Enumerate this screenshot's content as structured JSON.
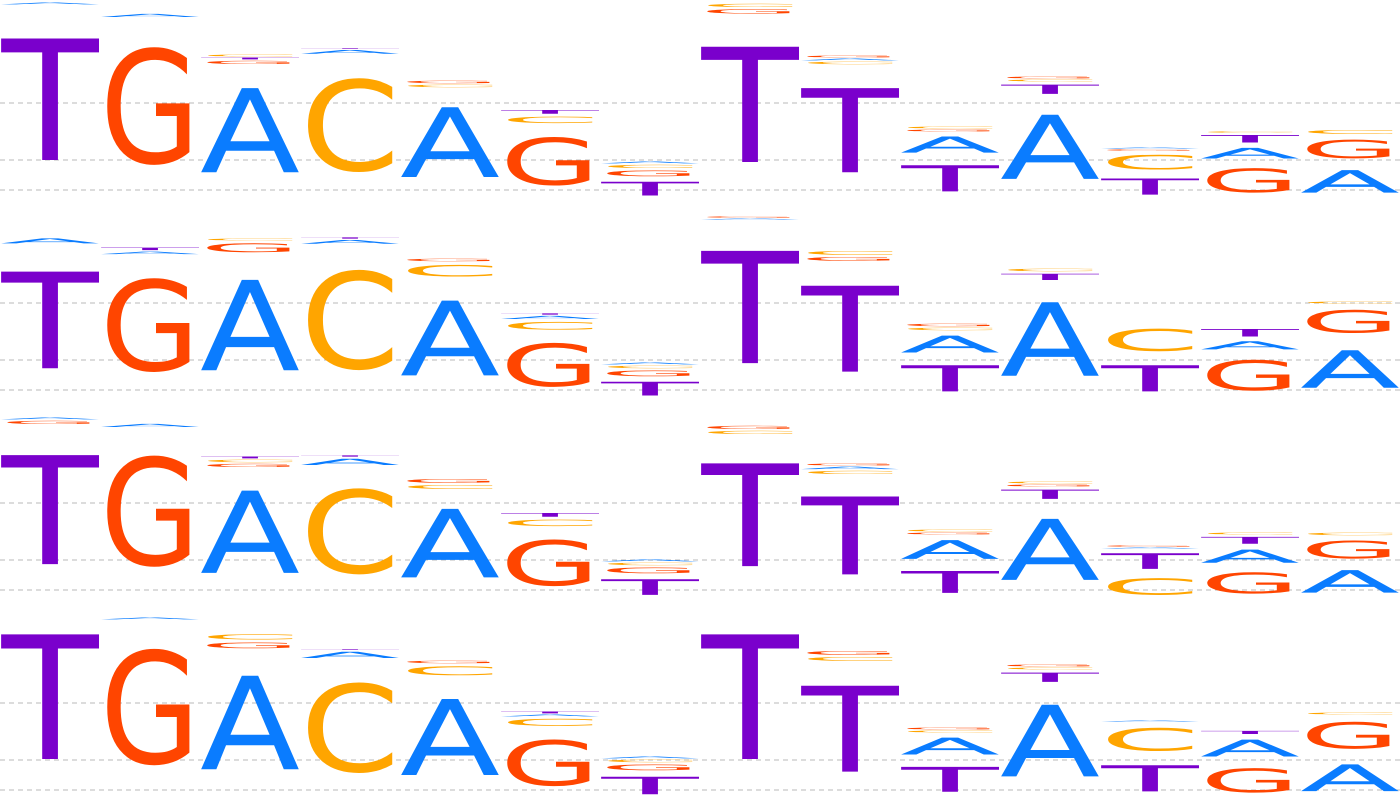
{
  "chart_data": [
    {
      "type": "sequence-logo",
      "alphabet": [
        "A",
        "C",
        "G",
        "T"
      ],
      "colors": {
        "A": "#0a7cff",
        "C": "#ffa500",
        "G": "#ff4500",
        "T": "#7a00cc"
      },
      "positions": [
        [
          [
            "T",
            1.95
          ],
          [
            "A",
            0.03
          ]
        ],
        [
          [
            "G",
            1.82
          ],
          [
            "A",
            0.05
          ]
        ],
        [
          [
            "A",
            1.35
          ],
          [
            "C",
            0.03
          ],
          [
            "G",
            0.05
          ],
          [
            "T",
            0.03
          ]
        ],
        [
          [
            "C",
            1.45
          ],
          [
            "A",
            0.06
          ],
          [
            "T",
            0.01
          ]
        ],
        [
          [
            "A",
            1.12
          ],
          [
            "G",
            0.04
          ],
          [
            "C",
            0.04
          ]
        ],
        [
          [
            "G",
            0.75
          ],
          [
            "C",
            0.1
          ],
          [
            "T",
            0.06
          ]
        ],
        [
          [
            "T",
            0.22
          ],
          [
            "G",
            0.09
          ],
          [
            "C",
            0.05
          ],
          [
            "A",
            0.03
          ]
        ],
        [
          [
            "T",
            1.85
          ],
          [
            "G",
            0.07
          ],
          [
            "C",
            0.05
          ]
        ],
        [
          [
            "T",
            1.35
          ],
          [
            "C",
            0.04
          ],
          [
            "G",
            0.03
          ],
          [
            "A",
            0.03
          ]
        ],
        [
          [
            "T",
            0.42
          ],
          [
            "A",
            0.26
          ],
          [
            "C",
            0.03
          ],
          [
            "G",
            0.03
          ]
        ],
        [
          [
            "A",
            1.03
          ],
          [
            "T",
            0.15
          ],
          [
            "G",
            0.03
          ],
          [
            "C",
            0.03
          ]
        ],
        [
          [
            "T",
            0.26
          ],
          [
            "C",
            0.23
          ],
          [
            "A",
            0.02
          ],
          [
            "G",
            0.02
          ]
        ],
        [
          [
            "G",
            0.38
          ],
          [
            "A",
            0.17
          ],
          [
            "T",
            0.12
          ],
          [
            "C",
            0.02
          ]
        ],
        [
          [
            "A",
            0.36
          ],
          [
            "G",
            0.29
          ],
          [
            "C",
            0.06
          ]
        ]
      ]
    },
    {
      "type": "sequence-logo",
      "alphabet": [
        "A",
        "C",
        "G",
        "T"
      ],
      "colors": {
        "A": "#0a7cff",
        "C": "#ffa500",
        "G": "#ff4500",
        "T": "#7a00cc"
      },
      "positions": [
        [
          [
            "T",
            1.55
          ],
          [
            "A",
            0.08
          ]
        ],
        [
          [
            "G",
            1.45
          ],
          [
            "T",
            0.04
          ],
          [
            "A",
            0.04
          ]
        ],
        [
          [
            "A",
            1.45
          ],
          [
            "G",
            0.14
          ],
          [
            "C",
            0.03
          ]
        ],
        [
          [
            "C",
            1.55
          ],
          [
            "T",
            0.02
          ],
          [
            "A",
            0.06
          ]
        ],
        [
          [
            "A",
            1.2
          ],
          [
            "C",
            0.18
          ],
          [
            "G",
            0.04
          ]
        ],
        [
          [
            "G",
            0.68
          ],
          [
            "C",
            0.12
          ],
          [
            "A",
            0.05
          ],
          [
            "T",
            0.02
          ]
        ],
        [
          [
            "T",
            0.22
          ],
          [
            "G",
            0.09
          ],
          [
            "C",
            0.04
          ],
          [
            "A",
            0.03
          ]
        ],
        [
          [
            "T",
            1.8
          ],
          [
            "G",
            0.02
          ],
          [
            "A",
            0.02
          ]
        ],
        [
          [
            "T",
            1.38
          ],
          [
            "C",
            0.06
          ],
          [
            "G",
            0.06
          ]
        ],
        [
          [
            "T",
            0.42
          ],
          [
            "A",
            0.27
          ],
          [
            "G",
            0.04
          ],
          [
            "C",
            0.04
          ]
        ],
        [
          [
            "A",
            1.18
          ],
          [
            "T",
            0.1
          ],
          [
            "C",
            0.04
          ]
        ],
        [
          [
            "T",
            0.42
          ],
          [
            "C",
            0.35
          ]
        ],
        [
          [
            "G",
            0.48
          ],
          [
            "A",
            0.13
          ],
          [
            "T",
            0.12
          ]
        ],
        [
          [
            "A",
            0.6
          ],
          [
            "G",
            0.36
          ],
          [
            "C",
            0.03
          ]
        ]
      ]
    },
    {
      "type": "sequence-logo",
      "alphabet": [
        "A",
        "C",
        "G",
        "T"
      ],
      "colors": {
        "A": "#0a7cff",
        "C": "#ffa500",
        "G": "#ff4500",
        "T": "#7a00cc"
      },
      "positions": [
        [
          [
            "T",
            1.75
          ],
          [
            "G",
            0.05
          ],
          [
            "A",
            0.03
          ]
        ],
        [
          [
            "G",
            1.72
          ],
          [
            "A",
            0.05
          ]
        ],
        [
          [
            "A",
            1.32
          ],
          [
            "C",
            0.04
          ],
          [
            "G",
            0.05
          ],
          [
            "T",
            0.03
          ]
        ],
        [
          [
            "C",
            1.33
          ],
          [
            "A",
            0.1
          ],
          [
            "T",
            0.02
          ]
        ],
        [
          [
            "A",
            1.1
          ],
          [
            "G",
            0.06
          ],
          [
            "C",
            0.06
          ]
        ],
        [
          [
            "G",
            0.72
          ],
          [
            "C",
            0.1
          ],
          [
            "T",
            0.06
          ]
        ],
        [
          [
            "T",
            0.25
          ],
          [
            "G",
            0.09
          ],
          [
            "C",
            0.04
          ],
          [
            "A",
            0.03
          ]
        ],
        [
          [
            "T",
            1.65
          ],
          [
            "G",
            0.05
          ],
          [
            "C",
            0.05
          ]
        ],
        [
          [
            "T",
            1.25
          ],
          [
            "A",
            0.04
          ],
          [
            "C",
            0.05
          ],
          [
            "G",
            0.03
          ]
        ],
        [
          [
            "T",
            0.35
          ],
          [
            "A",
            0.3
          ],
          [
            "C",
            0.03
          ],
          [
            "G",
            0.03
          ]
        ],
        [
          [
            "A",
            0.98
          ],
          [
            "T",
            0.15
          ],
          [
            "C",
            0.03
          ],
          [
            "G",
            0.03
          ]
        ],
        [
          [
            "T",
            0.25
          ],
          [
            "C",
            0.26
          ],
          [
            "G",
            0.02
          ],
          [
            "A",
            0.02
          ]
        ],
        [
          [
            "G",
            0.33
          ],
          [
            "A",
            0.21
          ],
          [
            "T",
            0.11
          ],
          [
            "C",
            0.03
          ]
        ],
        [
          [
            "A",
            0.36
          ],
          [
            "G",
            0.28
          ],
          [
            "C",
            0.04
          ]
        ]
      ]
    },
    {
      "type": "sequence-logo",
      "alphabet": [
        "A",
        "C",
        "G",
        "T"
      ],
      "colors": {
        "A": "#0a7cff",
        "C": "#ffa500",
        "G": "#ff4500",
        "T": "#7a00cc"
      },
      "positions": [
        [
          [
            "T",
            2.0
          ]
        ],
        [
          [
            "G",
            1.8
          ],
          [
            "A",
            0.03
          ]
        ],
        [
          [
            "A",
            1.5
          ],
          [
            "C",
            0.08
          ],
          [
            "G",
            0.09
          ]
        ],
        [
          [
            "C",
            1.4
          ],
          [
            "A",
            0.1
          ],
          [
            "T",
            0.01
          ]
        ],
        [
          [
            "A",
            1.22
          ],
          [
            "C",
            0.14
          ],
          [
            "G",
            0.04
          ]
        ],
        [
          [
            "G",
            0.72
          ],
          [
            "C",
            0.11
          ],
          [
            "T",
            0.03
          ],
          [
            "A",
            0.03
          ]
        ],
        [
          [
            "T",
            0.28
          ],
          [
            "G",
            0.09
          ],
          [
            "C",
            0.04
          ],
          [
            "A",
            0.03
          ]
        ],
        [
          [
            "T",
            2.0
          ]
        ],
        [
          [
            "T",
            1.38
          ],
          [
            "G",
            0.06
          ],
          [
            "C",
            0.06
          ]
        ],
        [
          [
            "T",
            0.4
          ],
          [
            "A",
            0.27
          ],
          [
            "G",
            0.03
          ],
          [
            "C",
            0.03
          ]
        ],
        [
          [
            "A",
            1.15
          ],
          [
            "T",
            0.15
          ],
          [
            "G",
            0.03
          ],
          [
            "C",
            0.03
          ]
        ],
        [
          [
            "T",
            0.42
          ],
          [
            "C",
            0.36
          ],
          [
            "A",
            0.02
          ]
        ],
        [
          [
            "G",
            0.38
          ],
          [
            "A",
            0.27
          ],
          [
            "T",
            0.05
          ]
        ],
        [
          [
            "A",
            0.43
          ],
          [
            "G",
            0.42
          ],
          [
            "C",
            0.03
          ]
        ]
      ]
    }
  ]
}
